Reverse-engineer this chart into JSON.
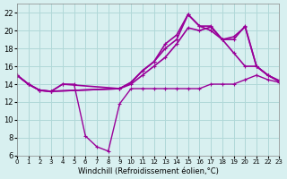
{
  "bg_color": "#d8f0f0",
  "grid_color": "#b0d8d8",
  "line_color": "#990099",
  "xlabel": "Windchill (Refroidissement éolien,°C)",
  "xlim": [
    0,
    23
  ],
  "ylim": [
    6,
    23
  ],
  "yticks": [
    6,
    8,
    10,
    12,
    14,
    16,
    18,
    20,
    22
  ],
  "xticks": [
    0,
    1,
    2,
    3,
    4,
    5,
    6,
    7,
    8,
    9,
    10,
    11,
    12,
    13,
    14,
    15,
    16,
    17,
    18,
    19,
    20,
    21,
    22,
    23
  ],
  "series": [
    {
      "x": [
        0,
        1,
        2,
        3,
        4,
        5,
        6,
        7,
        8,
        9,
        10,
        11,
        12,
        13,
        14,
        15,
        16,
        17,
        18,
        19,
        20,
        21,
        22,
        23
      ],
      "y": [
        15,
        14,
        13.3,
        13.2,
        14,
        14,
        8.2,
        7,
        6.5,
        11.8,
        13.5,
        13.5,
        13.5,
        13.5,
        13.5,
        13.5,
        13.5,
        14,
        14,
        14,
        14.5,
        15,
        14.5,
        14.2
      ],
      "lw": 1.0
    },
    {
      "x": [
        0,
        1,
        2,
        3,
        4,
        9,
        10,
        11,
        12,
        13,
        14,
        15,
        16,
        17,
        18,
        19,
        20,
        21,
        22,
        23
      ],
      "y": [
        15,
        14,
        13.3,
        13.2,
        14,
        13.5,
        14,
        15,
        16,
        17,
        18.5,
        20.3,
        20,
        20.4,
        19.0,
        17.5,
        16,
        16,
        15,
        14.3
      ],
      "lw": 1.2
    },
    {
      "x": [
        0,
        1,
        2,
        3,
        9,
        10,
        11,
        12,
        13,
        14,
        15,
        16,
        17,
        18,
        19,
        20,
        21,
        22,
        23
      ],
      "y": [
        15,
        14,
        13.3,
        13.2,
        13.5,
        14.2,
        15.5,
        16.5,
        18.5,
        19.5,
        21.8,
        20.5,
        20,
        19.0,
        19.0,
        20.5,
        16,
        15,
        14.3
      ],
      "lw": 1.2
    },
    {
      "x": [
        0,
        1,
        2,
        3,
        9,
        10,
        11,
        12,
        13,
        14,
        15,
        16,
        17,
        18,
        19,
        20,
        21,
        22,
        23
      ],
      "y": [
        15,
        14,
        13.3,
        13.2,
        13.5,
        14.2,
        15.5,
        16.5,
        18.0,
        19.0,
        21.8,
        20.5,
        20.5,
        19.0,
        19.3,
        20.4,
        16.0,
        15,
        14.4
      ],
      "lw": 1.2
    }
  ]
}
